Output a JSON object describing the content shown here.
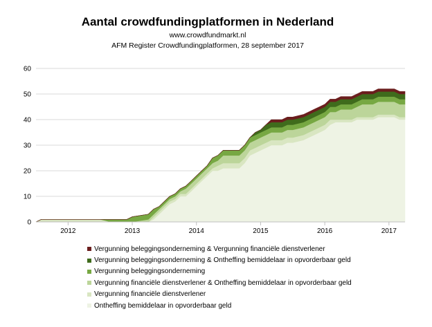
{
  "chart_data": {
    "type": "area",
    "stacked": true,
    "title": "Aantal crowdfundingplatformen in Nederland",
    "subtitle": [
      "www.crowdfundmarkt.nl",
      "AFM Register Crowdfundingplatformen, 28 september 2017"
    ],
    "xlabel": "",
    "ylabel": "",
    "ylim": [
      0,
      60
    ],
    "yticks": [
      0,
      10,
      20,
      30,
      40,
      50,
      60
    ],
    "xlim": [
      2011.5,
      2017.25
    ],
    "xticks": [
      2012,
      2013,
      2014,
      2015,
      2016,
      2017
    ],
    "xtick_labels": [
      "2012",
      "2013",
      "2014",
      "2015",
      "2016",
      "2017"
    ],
    "grid": "horizontal",
    "legend_position": "bottom",
    "x": [
      2011.5,
      2011.583,
      2012.0,
      2012.5,
      2012.667,
      2012.75,
      2012.917,
      2013.0,
      2013.25,
      2013.333,
      2013.417,
      2013.5,
      2013.583,
      2013.667,
      2013.75,
      2013.833,
      2013.917,
      2014.0,
      2014.083,
      2014.167,
      2014.25,
      2014.333,
      2014.417,
      2014.5,
      2014.583,
      2014.667,
      2014.75,
      2014.833,
      2014.917,
      2015.0,
      2015.083,
      2015.167,
      2015.25,
      2015.333,
      2015.417,
      2015.5,
      2015.667,
      2015.75,
      2015.833,
      2015.917,
      2016.0,
      2016.083,
      2016.167,
      2016.25,
      2016.333,
      2016.417,
      2016.5,
      2016.583,
      2016.667,
      2016.75,
      2016.833,
      2016.917,
      2017.0,
      2017.083,
      2017.167,
      2017.25
    ],
    "series": [
      {
        "name": "Ontheffing bemiddelaar in opvorderbaar geld",
        "color": "#eef3e4",
        "values": [
          0,
          0,
          0,
          0,
          0,
          0,
          0,
          0,
          0,
          1,
          3,
          5,
          7,
          8,
          10,
          10,
          12,
          14,
          16,
          18,
          20,
          20,
          21,
          21,
          21,
          21,
          23,
          26,
          27,
          28,
          29,
          30,
          30,
          30,
          31,
          31,
          32,
          33,
          34,
          35,
          36,
          38,
          39,
          39,
          39,
          39,
          40,
          40,
          40,
          40,
          41,
          41,
          41,
          41,
          40,
          40
        ]
      },
      {
        "name": "Vergunning financiële dienstverlener",
        "color": "#d9e6c2",
        "values": [
          0,
          1,
          1,
          1,
          0,
          0,
          0,
          0,
          0,
          1,
          1,
          1,
          1,
          1,
          1,
          1,
          1,
          1,
          1,
          1,
          1,
          2,
          2,
          2,
          2,
          2,
          2,
          2,
          2,
          2,
          2,
          2,
          2,
          2,
          2,
          2,
          2,
          2,
          2,
          2,
          2,
          2,
          1,
          1,
          1,
          1,
          1,
          1,
          1,
          1,
          1,
          1,
          1,
          1,
          1,
          1
        ]
      },
      {
        "name": "Vergunning financiële dienstverlener & Ontheffing bemiddelaar in opvorderbaar geld",
        "color": "#bcd59a",
        "values": [
          0,
          0,
          0,
          0,
          0,
          0,
          0,
          0,
          1,
          1,
          1,
          1,
          1,
          1,
          1,
          2,
          2,
          2,
          2,
          2,
          2,
          2,
          3,
          3,
          3,
          3,
          3,
          3,
          3,
          3,
          3,
          3,
          3,
          3,
          3,
          3,
          3,
          3,
          3,
          3,
          3,
          3,
          3,
          4,
          4,
          4,
          4,
          5,
          5,
          5,
          5,
          5,
          5,
          5,
          5,
          5
        ]
      },
      {
        "name": "Vergunning beleggingsonderneming",
        "color": "#77a843",
        "values": [
          0,
          0,
          0,
          0,
          1,
          1,
          1,
          2,
          2,
          2,
          1,
          1,
          1,
          1,
          1,
          1,
          1,
          1,
          1,
          1,
          2,
          2,
          2,
          2,
          2,
          2,
          2,
          2,
          2,
          2,
          2,
          2,
          2,
          2,
          2,
          2,
          2,
          2,
          2,
          2,
          2,
          2,
          2,
          2,
          2,
          2,
          2,
          2,
          2,
          2,
          2,
          2,
          2,
          2,
          2,
          2
        ]
      },
      {
        "name": "Vergunning beleggingsonderneming & Ontheffing bemiddelaar in opvorderbaar geld",
        "color": "#3f6b1c",
        "values": [
          0,
          0,
          0,
          0,
          0,
          0,
          0,
          0,
          0,
          0,
          0,
          0,
          0,
          0,
          0,
          0,
          0,
          0,
          0,
          0,
          0,
          0,
          0,
          0,
          0,
          0,
          0,
          0,
          1,
          1,
          2,
          2,
          2,
          2,
          2,
          2,
          2,
          2,
          2,
          2,
          2,
          2,
          2,
          2,
          2,
          2,
          2,
          2,
          2,
          2,
          2,
          2,
          2,
          2,
          2,
          2
        ]
      },
      {
        "name": "Vergunning beleggingsonderneming & Vergunning financiële dienstverlener",
        "color": "#6b1e1e",
        "values": [
          0,
          0,
          0,
          0,
          0,
          0,
          0,
          0,
          0,
          0,
          0,
          0,
          0,
          0,
          0,
          0,
          0,
          0,
          0,
          0,
          0,
          0,
          0,
          0,
          0,
          0,
          0,
          0,
          0,
          0,
          0,
          1,
          1,
          1,
          1,
          1,
          1,
          1,
          1,
          1,
          1,
          1,
          1,
          1,
          1,
          1,
          1,
          1,
          1,
          1,
          1,
          1,
          1,
          1,
          1,
          1
        ]
      }
    ]
  }
}
